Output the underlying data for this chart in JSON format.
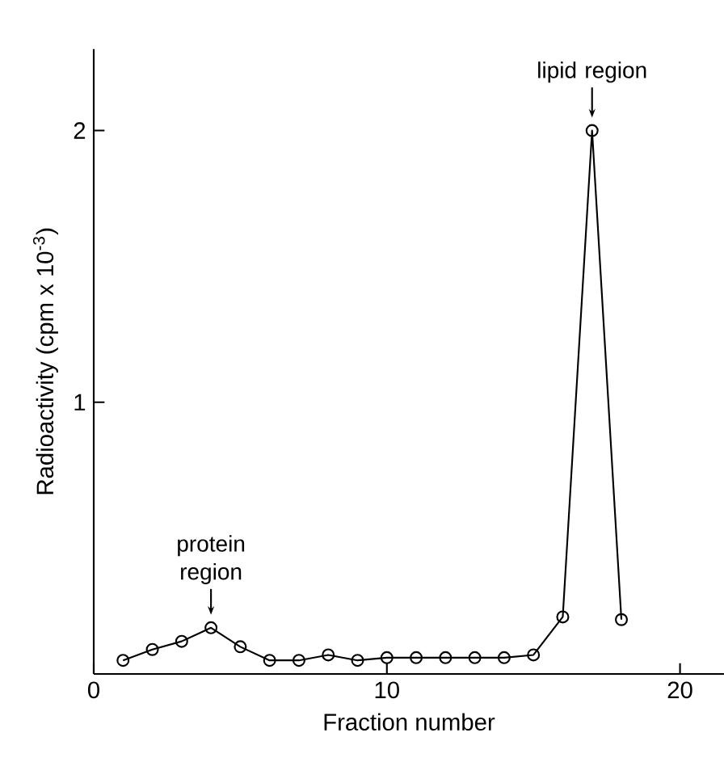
{
  "chart_data": {
    "type": "line",
    "xlabel": "Fraction number",
    "ylabel": "Radioactivity (cpm x 10$^{-3}$)",
    "x": [
      1,
      2,
      3,
      4,
      5,
      6,
      7,
      8,
      9,
      10,
      11,
      12,
      13,
      14,
      15,
      16,
      17,
      18
    ],
    "series": [
      {
        "color": "#000000",
        "values": [
          0.05,
          0.09,
          0.12,
          0.17,
          0.1,
          0.05,
          0.05,
          0.07,
          0.05,
          0.06,
          0.06,
          0.06,
          0.06,
          0.06,
          0.07,
          0.21,
          2.0,
          0.2
        ]
      }
    ],
    "xlim": [
      0,
      21.5
    ],
    "ylim": [
      0,
      2.3
    ],
    "xticks": [
      0,
      10,
      20
    ],
    "yticks": [
      1,
      2
    ],
    "marker": "circle",
    "grid": false,
    "annotations": [
      {
        "text": "protein region",
        "x": 4,
        "y": 0.17
      },
      {
        "text": "lipid region",
        "x": 17,
        "y": 2.0
      }
    ]
  }
}
